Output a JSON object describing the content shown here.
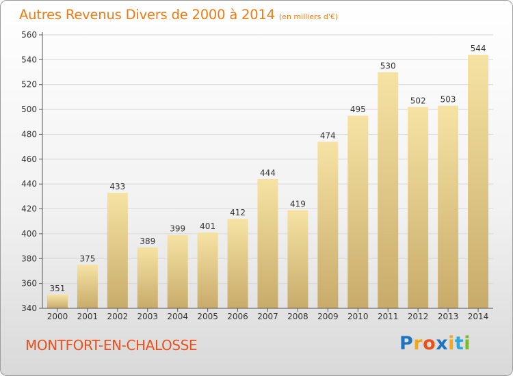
{
  "header": {
    "title": "Autres Revenus Divers de 2000 à 2014",
    "subtitle": "(en milliers d'€)"
  },
  "footer": {
    "commune": "MONTFORT-EN-CHALOSSE",
    "brand_letters": [
      "P",
      "r",
      "o",
      "x",
      "i",
      "t",
      "i"
    ],
    "brand_colors": [
      "#1e73be",
      "#f2a81d",
      "#e8511c",
      "#1e73be",
      "#f2a81d",
      "#2aa8d8",
      "#7cb82f"
    ]
  },
  "colors": {
    "bar_light": "#f6e3a4",
    "bar_dark": "#c8ab6a",
    "axis": "#555555",
    "grid": "#d8d8d8",
    "label": "#333333"
  },
  "chart_data": {
    "type": "bar",
    "categories": [
      "2000",
      "2001",
      "2002",
      "2003",
      "2004",
      "2005",
      "2006",
      "2007",
      "2008",
      "2009",
      "2010",
      "2011",
      "2012",
      "2013",
      "2014"
    ],
    "values": [
      351,
      375,
      433,
      389,
      399,
      401,
      412,
      444,
      419,
      474,
      495,
      530,
      502,
      503,
      544
    ],
    "title": "Autres Revenus Divers de 2000 à 2014",
    "subtitle": "(en milliers d'€)",
    "xlabel": "",
    "ylabel": "",
    "ylim": [
      340,
      560
    ],
    "yticks": [
      340,
      360,
      380,
      400,
      420,
      440,
      460,
      480,
      500,
      520,
      540,
      560
    ],
    "grid": true,
    "data_labels": true
  }
}
